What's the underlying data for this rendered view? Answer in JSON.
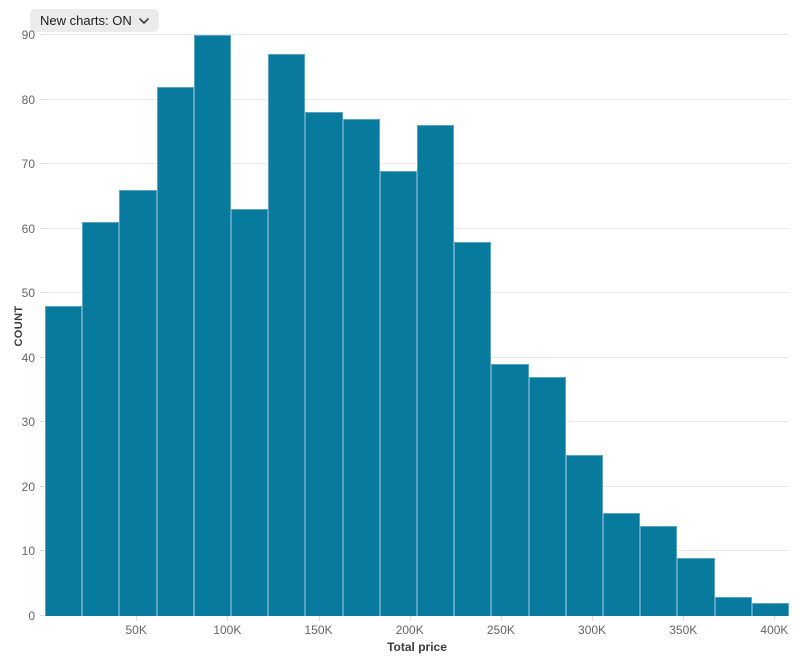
{
  "controls": {
    "new_charts_label": "New charts: ON"
  },
  "chart_data": {
    "type": "bar",
    "title": "",
    "xlabel": "Total price",
    "ylabel": "COUNT",
    "ylim": [
      0,
      90
    ],
    "xlim": [
      0,
      408000
    ],
    "grid": true,
    "legend": "none",
    "bar_color": "#077a9e",
    "bar_stroke": "#5aa4c1",
    "grid_color": "#e9e9e9",
    "bin_count": 20,
    "approx_bin_width": 20400,
    "values": [
      48,
      61,
      66,
      82,
      90,
      63,
      87,
      78,
      77,
      69,
      76,
      58,
      39,
      37,
      25,
      16,
      14,
      9,
      3,
      2
    ],
    "y_ticks": [
      0,
      10,
      20,
      30,
      40,
      50,
      60,
      70,
      80,
      90
    ],
    "x_ticks": [
      {
        "value": 50000,
        "label": "50K"
      },
      {
        "value": 100000,
        "label": "100K"
      },
      {
        "value": 150000,
        "label": "150K"
      },
      {
        "value": 200000,
        "label": "200K"
      },
      {
        "value": 250000,
        "label": "250K"
      },
      {
        "value": 300000,
        "label": "300K"
      },
      {
        "value": 350000,
        "label": "350K"
      },
      {
        "value": 400000,
        "label": "400K"
      }
    ]
  }
}
